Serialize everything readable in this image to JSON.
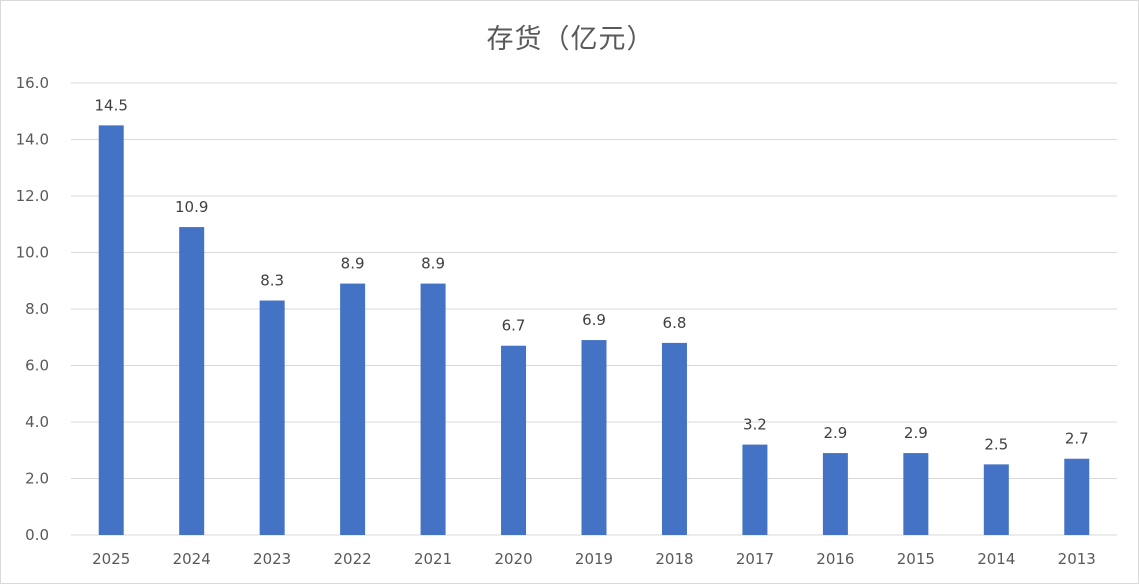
{
  "chart_data": {
    "type": "bar",
    "title": "存货（亿元）",
    "categories": [
      "2025",
      "2024",
      "2023",
      "2022",
      "2021",
      "2020",
      "2019",
      "2018",
      "2017",
      "2016",
      "2015",
      "2014",
      "2013"
    ],
    "values": [
      14.5,
      10.9,
      8.3,
      8.9,
      8.9,
      6.7,
      6.9,
      6.8,
      3.2,
      2.9,
      2.9,
      2.5,
      2.7
    ],
    "data_labels": [
      "14.5",
      "10.9",
      "8.3",
      "8.9",
      "8.9",
      "6.7",
      "6.9",
      "6.8",
      "3.2",
      "2.9",
      "2.9",
      "2.5",
      "2.7"
    ],
    "xlabel": "",
    "ylabel": "",
    "ylim": [
      0,
      16
    ],
    "yticks": [
      "0.0",
      "2.0",
      "4.0",
      "6.0",
      "8.0",
      "10.0",
      "12.0",
      "14.0",
      "16.0"
    ],
    "grid": true,
    "legend": "none",
    "bar_color": "#4472C4",
    "grid_color": "#d9d9d9"
  }
}
